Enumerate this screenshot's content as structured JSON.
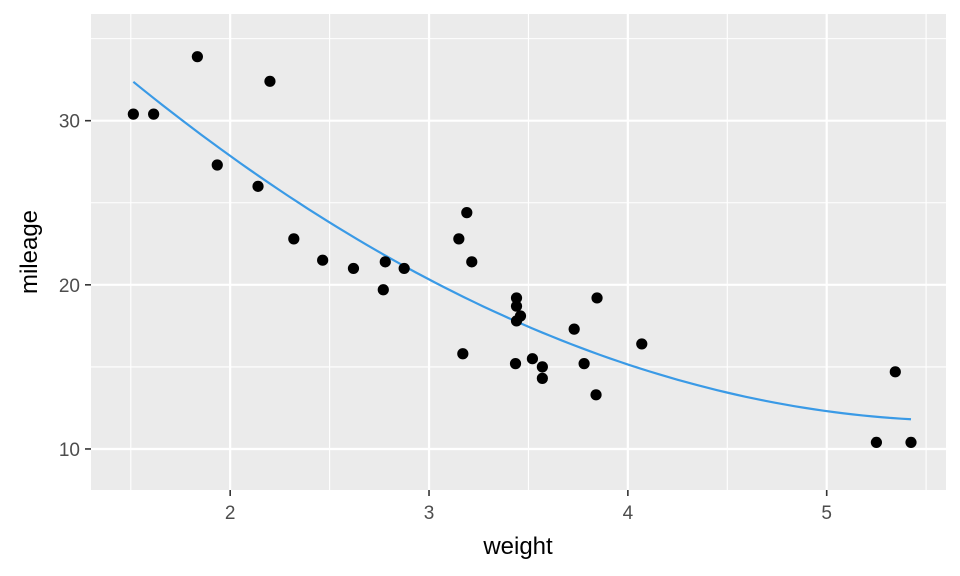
{
  "chart_data": {
    "type": "scatter",
    "title": "",
    "xlabel": "weight",
    "ylabel": "mileage",
    "xlim": [
      1.3,
      5.6
    ],
    "ylim": [
      7.5,
      36.5
    ],
    "x_ticks": [
      2,
      3,
      4,
      5
    ],
    "x_tick_labels": [
      "2",
      "3",
      "4",
      "5"
    ],
    "y_ticks": [
      10,
      20,
      30
    ],
    "y_tick_labels": [
      "10",
      "20",
      "30"
    ],
    "grid": true,
    "legend": "none",
    "colors": {
      "panel": "#ebebeb",
      "grid": "#ffffff",
      "points": "#000000",
      "trend": "#3a9ae6"
    },
    "points": [
      {
        "x": 1.513,
        "y": 30.4
      },
      {
        "x": 1.615,
        "y": 30.4
      },
      {
        "x": 1.835,
        "y": 33.9
      },
      {
        "x": 1.935,
        "y": 27.3
      },
      {
        "x": 2.14,
        "y": 26.0
      },
      {
        "x": 2.2,
        "y": 32.4
      },
      {
        "x": 2.32,
        "y": 22.8
      },
      {
        "x": 2.465,
        "y": 21.5
      },
      {
        "x": 2.62,
        "y": 21.0
      },
      {
        "x": 2.77,
        "y": 19.7
      },
      {
        "x": 2.78,
        "y": 21.4
      },
      {
        "x": 2.875,
        "y": 21.0
      },
      {
        "x": 3.15,
        "y": 22.8
      },
      {
        "x": 3.17,
        "y": 15.8
      },
      {
        "x": 3.19,
        "y": 24.4
      },
      {
        "x": 3.215,
        "y": 21.4
      },
      {
        "x": 3.435,
        "y": 15.2
      },
      {
        "x": 3.44,
        "y": 18.7
      },
      {
        "x": 3.44,
        "y": 19.2
      },
      {
        "x": 3.44,
        "y": 17.8
      },
      {
        "x": 3.46,
        "y": 18.1
      },
      {
        "x": 3.52,
        "y": 15.5
      },
      {
        "x": 3.57,
        "y": 14.3
      },
      {
        "x": 3.57,
        "y": 15.0
      },
      {
        "x": 3.73,
        "y": 17.3
      },
      {
        "x": 3.78,
        "y": 15.2
      },
      {
        "x": 3.84,
        "y": 13.3
      },
      {
        "x": 3.845,
        "y": 19.2
      },
      {
        "x": 4.07,
        "y": 16.4
      },
      {
        "x": 5.25,
        "y": 10.4
      },
      {
        "x": 5.345,
        "y": 14.7
      },
      {
        "x": 5.424,
        "y": 10.4
      }
    ],
    "trend_line": {
      "type": "quadratic",
      "coefficients": [
        49.931,
        -13.38,
        1.171
      ],
      "x_range": [
        1.513,
        5.424
      ]
    }
  }
}
